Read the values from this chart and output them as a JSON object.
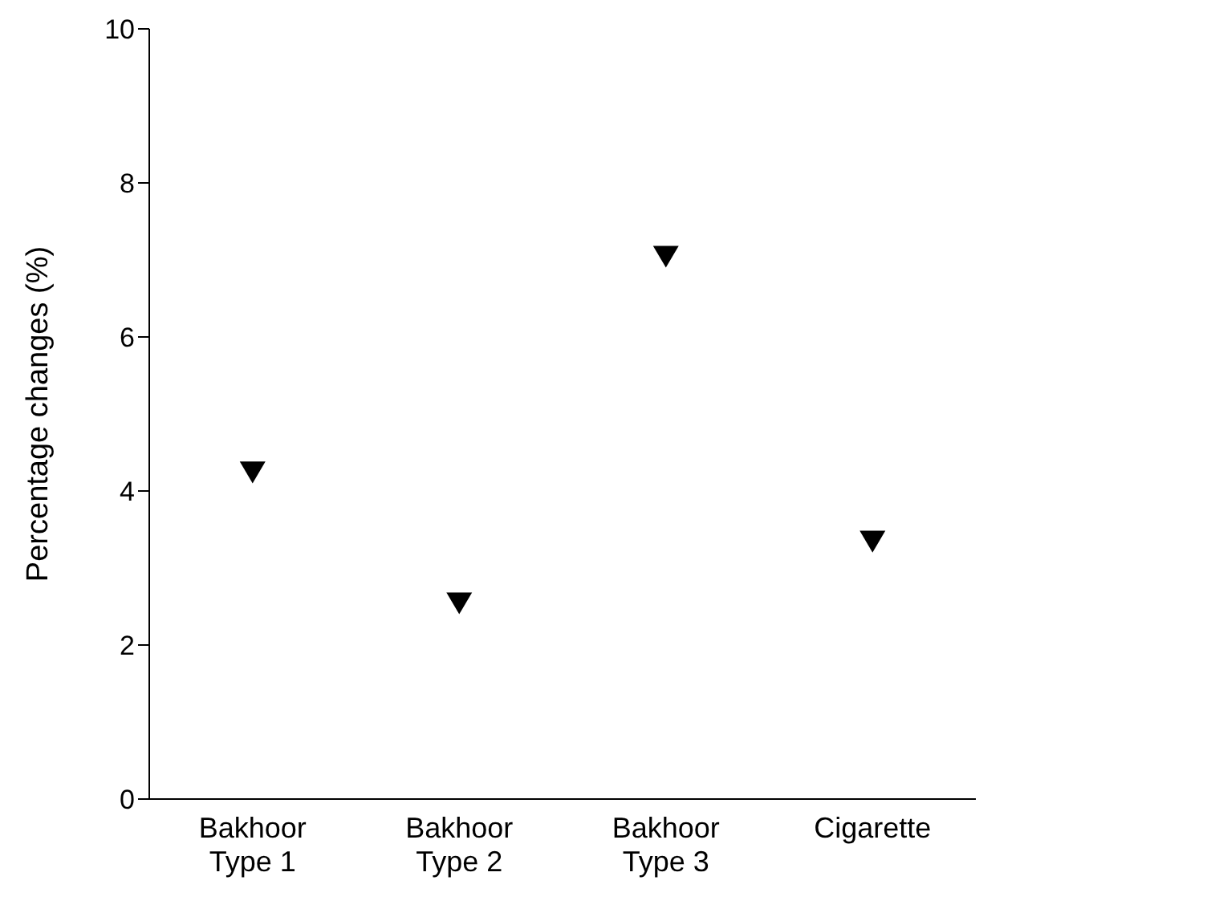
{
  "chart_data": {
    "type": "scatter",
    "ylabel": "Percentage changes (%)",
    "categories": [
      "Bakhoor Type 1",
      "Bakhoor Type 2",
      "Bakhoor Type 3",
      "Cigarette"
    ],
    "series": [
      {
        "color": "#000000",
        "values": [
          4.25,
          2.55,
          7.05,
          3.35
        ]
      }
    ],
    "ylim": [
      0,
      10
    ],
    "yticks": [
      0,
      2,
      4,
      6,
      8,
      10
    ],
    "marker": "triangle",
    "grid": false
  }
}
